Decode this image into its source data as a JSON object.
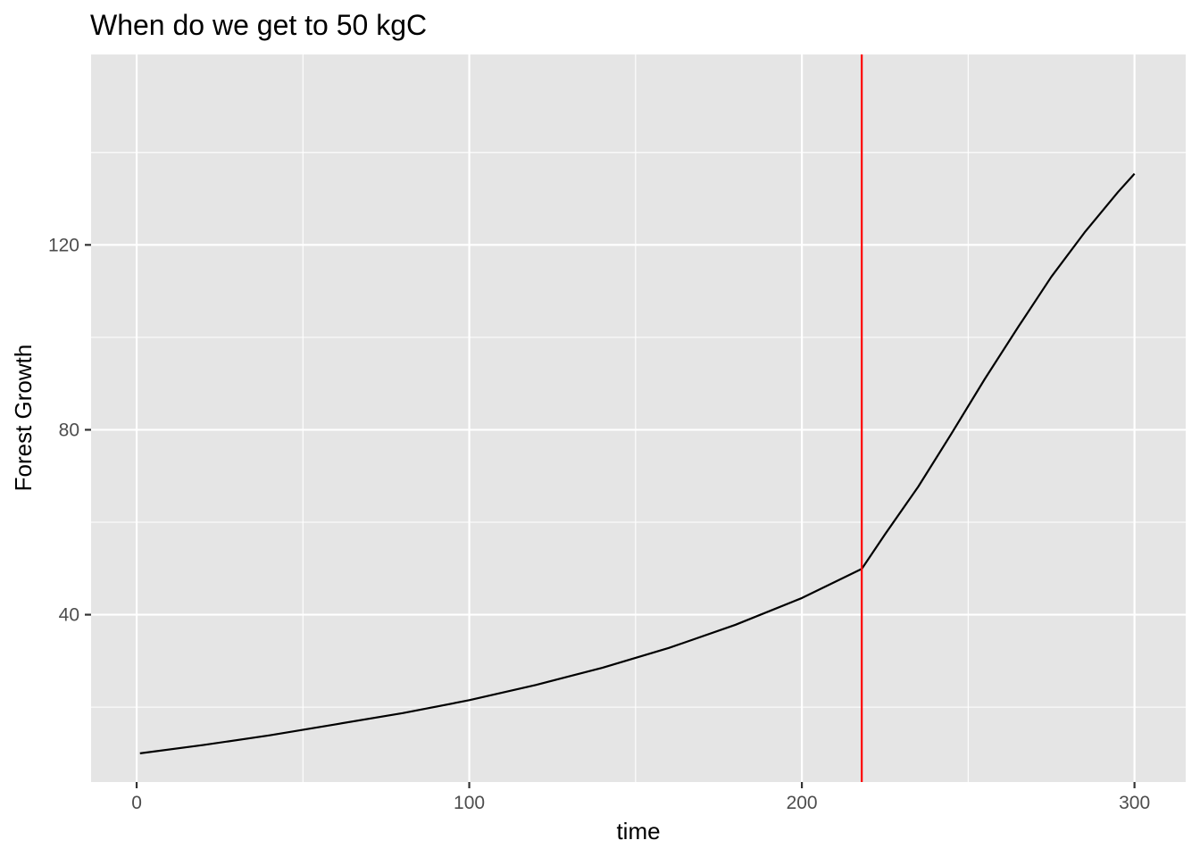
{
  "chart_data": {
    "type": "line",
    "title": "When do we get to 50 kgC",
    "xlabel": "time",
    "ylabel": "Forest Growth",
    "xlim": [
      -13.7,
      315.4
    ],
    "ylim": [
      3.8,
      161.2
    ],
    "x_ticks": [
      {
        "value": 0,
        "label": "0"
      },
      {
        "value": 100,
        "label": "100"
      },
      {
        "value": 200,
        "label": "200"
      },
      {
        "value": 300,
        "label": "300"
      }
    ],
    "x_minor_ticks": [
      50,
      150,
      250
    ],
    "y_ticks": [
      {
        "value": 40,
        "label": "40"
      },
      {
        "value": 80,
        "label": "80"
      },
      {
        "value": 120,
        "label": "120"
      }
    ],
    "y_minor_ticks": [
      20,
      60,
      100,
      140
    ],
    "grid": true,
    "panel_background": "#e5e5e5",
    "grid_color": "#ffffff",
    "series": [
      {
        "color": "#000000",
        "x": [
          1,
          20,
          40,
          60,
          80,
          100,
          120,
          140,
          160,
          180,
          200,
          218,
          225,
          235,
          245,
          255,
          265,
          275,
          285,
          295,
          300
        ],
        "y": [
          10,
          11.8,
          13.9,
          16.3,
          18.7,
          21.5,
          24.8,
          28.5,
          32.8,
          37.8,
          43.6,
          49.9,
          57.4,
          67.7,
          79.2,
          91.0,
          102.2,
          113.1,
          122.7,
          131.4,
          135.4
        ]
      }
    ],
    "reference_lines": [
      {
        "orientation": "vertical",
        "x": 218,
        "color": "#ff0000"
      }
    ]
  }
}
